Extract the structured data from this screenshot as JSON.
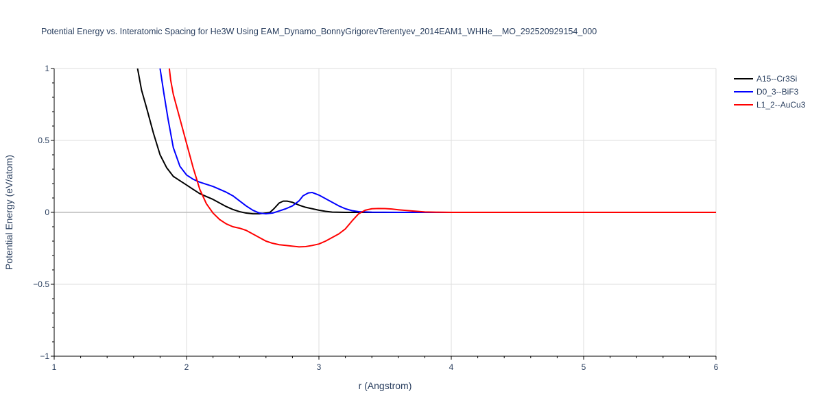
{
  "chart_data": {
    "type": "line",
    "title": "Potential Energy vs. Interatomic Spacing for He3W Using EAM_Dynamo_BonnyGrigorevTerentyev_2014EAM1_WHHe__MO_292520929154_000",
    "xlabel": "r (Angstrom)",
    "ylabel": "Potential Energy (eV/atom)",
    "xlim": [
      1,
      6
    ],
    "ylim": [
      -1,
      1
    ],
    "xticks": [
      1,
      2,
      3,
      4,
      5,
      6
    ],
    "xtick_labels": [
      "1",
      "2",
      "3",
      "4",
      "5",
      "6"
    ],
    "yticks": [
      -1,
      -0.5,
      0,
      0.5,
      1
    ],
    "ytick_labels": [
      "−1",
      "−0.5",
      "0",
      "0.5",
      "1"
    ],
    "grid": true,
    "legend_position": "top-right",
    "series": [
      {
        "name": "A15--Cr3Si",
        "color": "#000000",
        "x": [
          1.63,
          1.66,
          1.7,
          1.75,
          1.8,
          1.85,
          1.9,
          1.95,
          2.0,
          2.05,
          2.1,
          2.15,
          2.2,
          2.25,
          2.3,
          2.35,
          2.4,
          2.45,
          2.5,
          2.55,
          2.6,
          2.63,
          2.66,
          2.7,
          2.73,
          2.76,
          2.8,
          2.85,
          2.9,
          2.95,
          3.0,
          3.05,
          3.1,
          3.2,
          3.3,
          3.5,
          4.0,
          5.0,
          6.0
        ],
        "y": [
          1.0,
          0.85,
          0.72,
          0.55,
          0.4,
          0.31,
          0.25,
          0.22,
          0.19,
          0.16,
          0.13,
          0.11,
          0.09,
          0.065,
          0.04,
          0.02,
          0.005,
          -0.005,
          -0.01,
          -0.01,
          -0.005,
          0.0,
          0.025,
          0.065,
          0.078,
          0.078,
          0.07,
          0.05,
          0.035,
          0.025,
          0.015,
          0.007,
          0.002,
          0.0,
          0.0,
          0.0,
          0.0,
          0.0,
          0.0
        ]
      },
      {
        "name": "D0_3--BiF3",
        "color": "#0000ff",
        "x": [
          1.8,
          1.83,
          1.86,
          1.9,
          1.95,
          2.0,
          2.05,
          2.1,
          2.2,
          2.3,
          2.35,
          2.4,
          2.45,
          2.5,
          2.55,
          2.6,
          2.65,
          2.7,
          2.75,
          2.8,
          2.85,
          2.88,
          2.92,
          2.95,
          3.0,
          3.05,
          3.1,
          3.15,
          3.2,
          3.25,
          3.3,
          3.4,
          3.6,
          4.0,
          5.0,
          6.0
        ],
        "y": [
          1.0,
          0.82,
          0.65,
          0.45,
          0.32,
          0.26,
          0.23,
          0.21,
          0.18,
          0.14,
          0.115,
          0.08,
          0.045,
          0.015,
          -0.005,
          -0.01,
          -0.005,
          0.01,
          0.025,
          0.045,
          0.08,
          0.115,
          0.135,
          0.138,
          0.12,
          0.095,
          0.07,
          0.045,
          0.025,
          0.012,
          0.005,
          0.001,
          0.0,
          0.0,
          0.0,
          0.0
        ]
      },
      {
        "name": "L1_2--AuCu3",
        "color": "#ff0000",
        "x": [
          1.87,
          1.88,
          1.9,
          1.95,
          2.0,
          2.05,
          2.1,
          2.15,
          2.2,
          2.25,
          2.3,
          2.35,
          2.4,
          2.45,
          2.5,
          2.55,
          2.6,
          2.65,
          2.7,
          2.75,
          2.8,
          2.85,
          2.9,
          2.95,
          3.0,
          3.05,
          3.1,
          3.15,
          3.2,
          3.25,
          3.3,
          3.35,
          3.4,
          3.45,
          3.5,
          3.55,
          3.6,
          3.7,
          3.8,
          3.9,
          4.0,
          5.0,
          6.0
        ],
        "y": [
          1.0,
          0.92,
          0.82,
          0.65,
          0.48,
          0.31,
          0.16,
          0.06,
          -0.005,
          -0.05,
          -0.08,
          -0.1,
          -0.11,
          -0.125,
          -0.15,
          -0.175,
          -0.2,
          -0.215,
          -0.225,
          -0.23,
          -0.235,
          -0.24,
          -0.238,
          -0.23,
          -0.22,
          -0.2,
          -0.175,
          -0.15,
          -0.115,
          -0.06,
          -0.01,
          0.015,
          0.025,
          0.027,
          0.026,
          0.023,
          0.018,
          0.01,
          0.003,
          0.001,
          0.0,
          0.0,
          0.0
        ]
      }
    ]
  }
}
